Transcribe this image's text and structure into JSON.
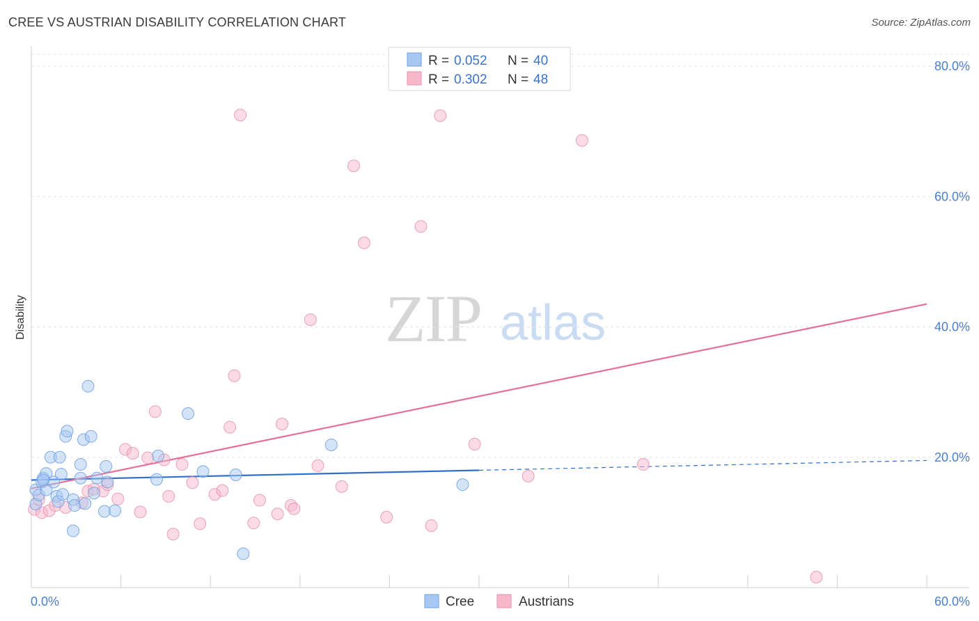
{
  "title": "CREE VS AUSTRIAN DISABILITY CORRELATION CHART",
  "source": "Source: ZipAtlas.com",
  "watermark": {
    "zip": "ZIP",
    "atlas": "atlas"
  },
  "legend_top": [
    {
      "r_label": "R =",
      "r_value": "0.052",
      "n_label": "N =",
      "n_value": "40",
      "color": "#a7c8f2",
      "stroke": "#6f9fe0"
    },
    {
      "r_label": "R =",
      "r_value": "0.302",
      "n_label": "N =",
      "n_value": "48",
      "color": "#f7b8cc",
      "stroke": "#e892ad"
    }
  ],
  "legend_bottom": [
    {
      "label": "Cree",
      "color": "#a7c8f2",
      "stroke": "#6f9fe0"
    },
    {
      "label": "Austrians",
      "color": "#f7b8cc",
      "stroke": "#e892ad"
    }
  ],
  "chart_data": {
    "type": "scatter",
    "title": "CREE VS AUSTRIAN DISABILITY CORRELATION CHART",
    "xlabel": "",
    "ylabel": "Disability",
    "xlim": [
      0,
      60
    ],
    "ylim": [
      0,
      80
    ],
    "x_tick_labels": [
      "0.0%",
      "60.0%"
    ],
    "y_ticks": [
      20,
      40,
      60,
      80
    ],
    "y_tick_labels": [
      "20.0%",
      "40.0%",
      "60.0%",
      "80.0%"
    ],
    "grid": true,
    "legend_position": "top-center",
    "series": [
      {
        "name": "Cree",
        "color": "#6f9fe0",
        "fill": "#a7c8f2",
        "line_color": "#2f6fcc",
        "trend": {
          "x0": 0,
          "y0": 16.5,
          "x1": 30,
          "y1": 18.0,
          "dash_to_x": 60,
          "dash_to_y": 19.5
        },
        "points": [
          [
            0.3,
            12.8
          ],
          [
            0.3,
            15.0
          ],
          [
            0.5,
            14.2
          ],
          [
            0.7,
            16.2
          ],
          [
            0.8,
            16.8
          ],
          [
            1.0,
            17.5
          ],
          [
            1.0,
            15.0
          ],
          [
            1.3,
            20.0
          ],
          [
            1.5,
            16.2
          ],
          [
            1.7,
            14.0
          ],
          [
            1.8,
            13.2
          ],
          [
            1.9,
            20.0
          ],
          [
            2.0,
            17.4
          ],
          [
            2.3,
            23.2
          ],
          [
            2.4,
            24.0
          ],
          [
            2.8,
            13.5
          ],
          [
            2.8,
            8.7
          ],
          [
            2.9,
            12.6
          ],
          [
            3.3,
            18.9
          ],
          [
            3.3,
            16.8
          ],
          [
            3.5,
            22.7
          ],
          [
            3.6,
            12.9
          ],
          [
            3.8,
            30.9
          ],
          [
            4.0,
            23.2
          ],
          [
            4.4,
            16.8
          ],
          [
            4.9,
            11.7
          ],
          [
            5.0,
            18.6
          ],
          [
            5.1,
            16.2
          ],
          [
            5.6,
            11.8
          ],
          [
            8.4,
            16.6
          ],
          [
            8.5,
            20.2
          ],
          [
            10.5,
            26.7
          ],
          [
            11.5,
            17.8
          ],
          [
            13.7,
            17.3
          ],
          [
            14.2,
            5.2
          ],
          [
            20.1,
            21.9
          ],
          [
            28.9,
            15.8
          ],
          [
            0.8,
            16.5
          ],
          [
            2.1,
            14.3
          ],
          [
            4.2,
            14.5
          ]
        ]
      },
      {
        "name": "Austrians",
        "color": "#e892ad",
        "fill": "#f7b8cc",
        "line_color": "#e56f97",
        "trend": {
          "x0": 0,
          "y0": 15.2,
          "x1": 60,
          "y1": 43.5
        },
        "points": [
          [
            0.2,
            12.0
          ],
          [
            0.5,
            13.5
          ],
          [
            0.7,
            11.5
          ],
          [
            1.2,
            11.8
          ],
          [
            1.6,
            12.6
          ],
          [
            2.3,
            12.3
          ],
          [
            3.4,
            13.0
          ],
          [
            3.8,
            14.8
          ],
          [
            4.2,
            15.1
          ],
          [
            4.8,
            14.8
          ],
          [
            5.1,
            15.8
          ],
          [
            5.8,
            13.6
          ],
          [
            6.3,
            21.2
          ],
          [
            6.8,
            20.6
          ],
          [
            7.3,
            11.6
          ],
          [
            7.8,
            19.9
          ],
          [
            8.3,
            27.0
          ],
          [
            8.9,
            19.6
          ],
          [
            9.2,
            14.0
          ],
          [
            9.5,
            8.2
          ],
          [
            10.1,
            18.9
          ],
          [
            10.8,
            16.1
          ],
          [
            11.3,
            9.8
          ],
          [
            12.3,
            14.3
          ],
          [
            12.8,
            14.9
          ],
          [
            13.3,
            24.6
          ],
          [
            13.6,
            32.5
          ],
          [
            14.0,
            72.5
          ],
          [
            14.9,
            9.9
          ],
          [
            15.3,
            13.4
          ],
          [
            16.5,
            11.3
          ],
          [
            16.8,
            25.1
          ],
          [
            17.4,
            12.6
          ],
          [
            17.6,
            12.1
          ],
          [
            18.7,
            41.1
          ],
          [
            19.2,
            18.7
          ],
          [
            20.8,
            15.5
          ],
          [
            21.6,
            64.7
          ],
          [
            22.3,
            52.9
          ],
          [
            23.8,
            10.8
          ],
          [
            26.1,
            55.4
          ],
          [
            26.8,
            9.5
          ],
          [
            27.4,
            72.4
          ],
          [
            29.7,
            22.0
          ],
          [
            33.3,
            17.1
          ],
          [
            36.9,
            68.6
          ],
          [
            41.0,
            18.9
          ],
          [
            52.6,
            1.6
          ]
        ]
      }
    ]
  }
}
